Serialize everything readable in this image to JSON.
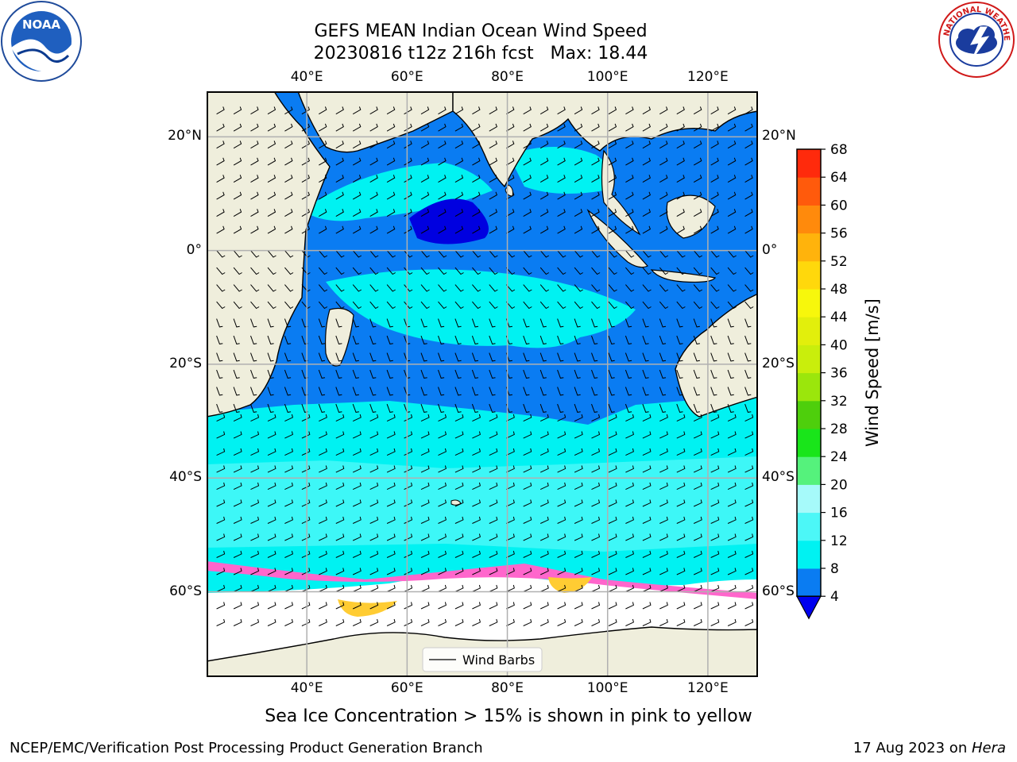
{
  "header": {
    "title_line1": "GEFS MEAN Indian Ocean Wind Speed",
    "title_line2": "20230816 t12z 216h fcst   Max: 18.44"
  },
  "logos": {
    "left": "noaa-logo",
    "left_text": "NOAA",
    "right": "national-weather-service-logo",
    "right_text": "NATIONAL WEATHER SERVICE"
  },
  "map": {
    "lon_ticks": [
      "40°E",
      "60°E",
      "80°E",
      "100°E",
      "120°E"
    ],
    "lon_values": [
      40,
      60,
      80,
      100,
      120
    ],
    "lat_ticks": [
      "20°N",
      "0°",
      "20°S",
      "40°S",
      "60°S"
    ],
    "lat_values": [
      20,
      0,
      -20,
      -40,
      -60
    ],
    "lon_range": [
      20,
      130
    ],
    "lat_range": [
      -75,
      28
    ],
    "legend_label": "Wind Barbs",
    "colors": {
      "land": "#efeedc",
      "ice_free_white": "#ffffff",
      "speed_4_8": "#0a7cf2",
      "speed_lt4": "#0000e0",
      "speed_8_12": "#00f2f2",
      "speed_12_16": "#4cf7f7",
      "sea_ice_pink": "#ff66cc",
      "sea_ice_yellow": "#ffcc33"
    }
  },
  "colorbar": {
    "label": "Wind Speed [m/s]",
    "ticks": [
      "4",
      "8",
      "12",
      "16",
      "20",
      "24",
      "28",
      "32",
      "36",
      "40",
      "44",
      "48",
      "52",
      "56",
      "60",
      "64",
      "68"
    ],
    "colors": [
      "#0a7cf2",
      "#00f2f2",
      "#4cf7f7",
      "#a6fafa",
      "#55f27c",
      "#19e51a",
      "#4ecf0c",
      "#9be60c",
      "#c9ee0c",
      "#e2ef0c",
      "#f7f70c",
      "#ffd80c",
      "#ffb30c",
      "#ff8a0c",
      "#ff5a0c",
      "#ff2a0c"
    ],
    "under_color": "#0000ee"
  },
  "footnote": "Sea Ice Concentration > 15% is shown in pink to yellow",
  "footer": {
    "left": "NCEP/EMC/Verification Post Processing Product Generation Branch",
    "right_date": "17 Aug 2023 on ",
    "right_host": "Hera"
  }
}
